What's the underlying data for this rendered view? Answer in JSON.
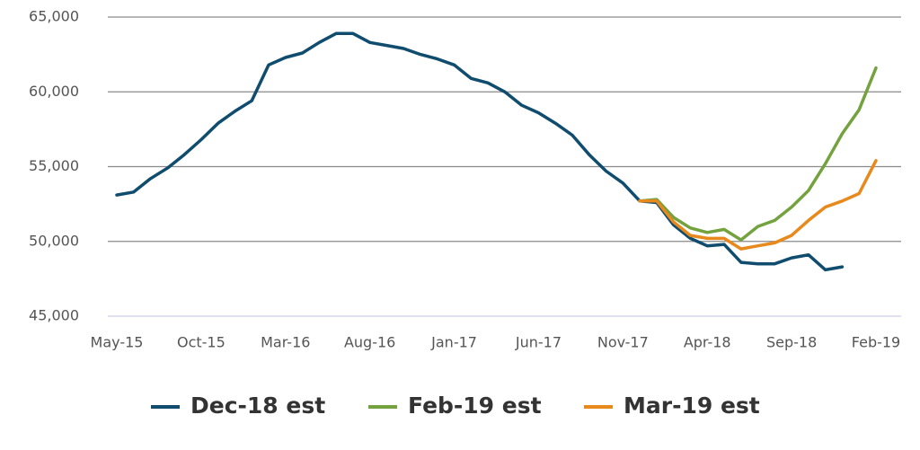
{
  "chart_data": {
    "type": "line",
    "categories": [
      "May-15",
      null,
      null,
      null,
      null,
      "Oct-15",
      null,
      null,
      null,
      null,
      "Mar-16",
      null,
      null,
      null,
      null,
      "Aug-16",
      null,
      null,
      null,
      null,
      "Jan-17",
      null,
      null,
      null,
      null,
      "Jun-17",
      null,
      null,
      null,
      null,
      "Nov-17",
      null,
      null,
      null,
      null,
      "Apr-18",
      null,
      null,
      null,
      null,
      "Sep-18",
      null,
      null,
      null,
      null,
      "Feb-19"
    ],
    "series": [
      {
        "name": "Dec-18 est",
        "color": "#0f4c6e",
        "values": [
          53100,
          53300,
          54200,
          54900,
          55800,
          56800,
          57900,
          58700,
          59400,
          61800,
          62300,
          62600,
          63300,
          63900,
          63900,
          63300,
          63100,
          62900,
          62500,
          62200,
          61800,
          60900,
          60600,
          60000,
          59100,
          58600,
          57900,
          57100,
          55800,
          54700,
          53900,
          52700,
          52600,
          51100,
          50200,
          49700,
          49800,
          48600,
          48500,
          48500,
          48900,
          49100,
          48100,
          48300,
          null,
          null
        ]
      },
      {
        "name": "Feb-19 est",
        "color": "#74a23e",
        "values": [
          null,
          null,
          null,
          null,
          null,
          null,
          null,
          null,
          null,
          null,
          null,
          null,
          null,
          null,
          null,
          null,
          null,
          null,
          null,
          null,
          null,
          null,
          null,
          null,
          null,
          null,
          null,
          null,
          null,
          null,
          null,
          52700,
          52800,
          51600,
          50900,
          50600,
          50800,
          50100,
          51000,
          51400,
          52300,
          53400,
          55200,
          57200,
          58800,
          61600
        ]
      },
      {
        "name": "Mar-19 est",
        "color": "#e8891c",
        "values": [
          null,
          null,
          null,
          null,
          null,
          null,
          null,
          null,
          null,
          null,
          null,
          null,
          null,
          null,
          null,
          null,
          null,
          null,
          null,
          null,
          null,
          null,
          null,
          null,
          null,
          null,
          null,
          null,
          null,
          null,
          null,
          52700,
          52700,
          51300,
          50400,
          50200,
          50200,
          49500,
          49700,
          49900,
          50400,
          51400,
          52300,
          52700,
          53200,
          55400
        ]
      }
    ],
    "ylim": [
      45000,
      65000
    ],
    "yticks": [
      {
        "value": 45000,
        "label": "45,000"
      },
      {
        "value": 50000,
        "label": "50,000"
      },
      {
        "value": 55000,
        "label": "55,000"
      },
      {
        "value": 60000,
        "label": "60,000"
      },
      {
        "value": 65000,
        "label": "65,000"
      }
    ],
    "grid": true
  }
}
